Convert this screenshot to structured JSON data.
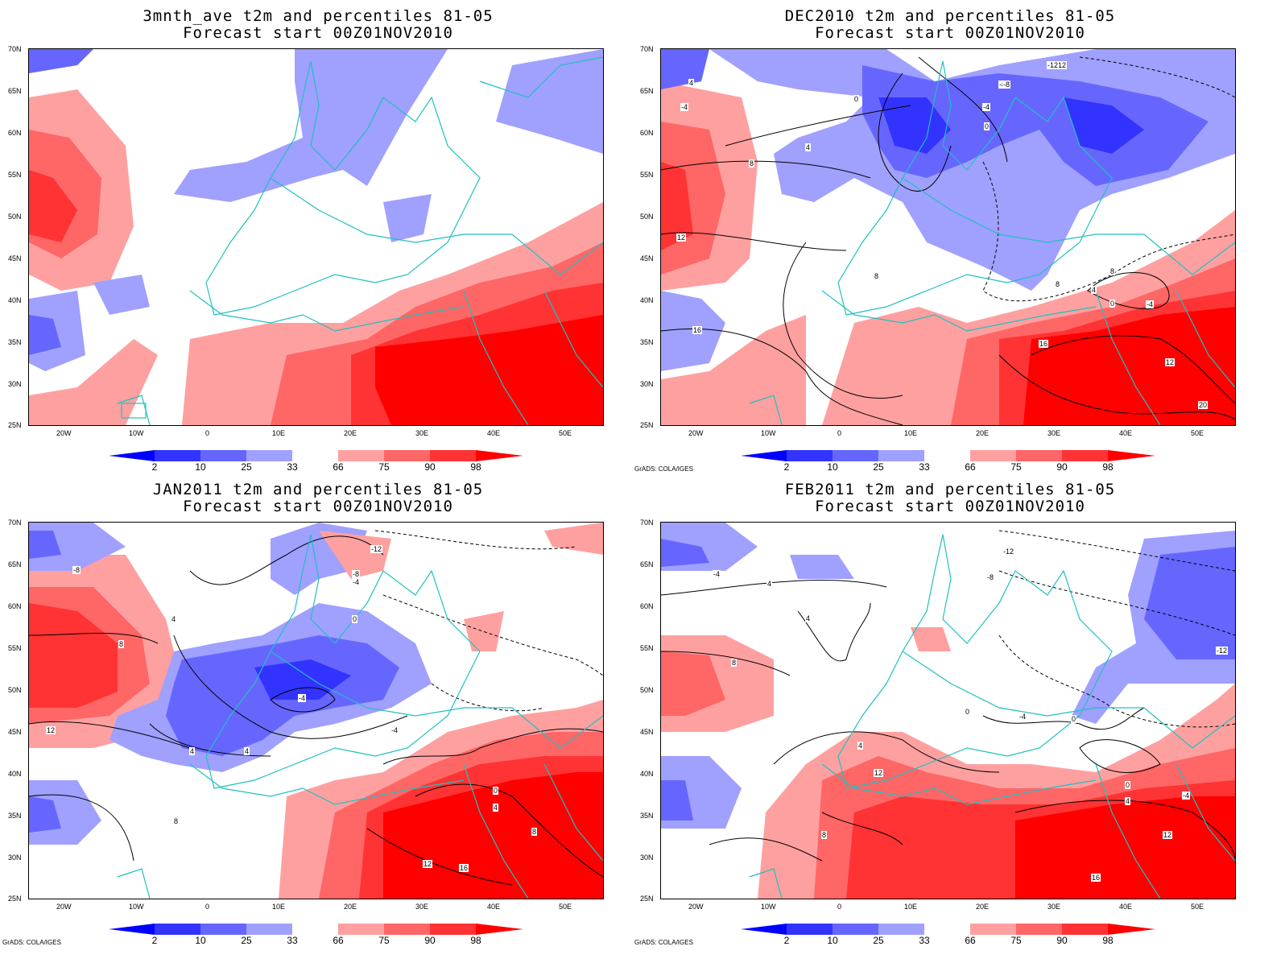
{
  "panels": [
    {
      "title1": "3mnth_ave t2m and percentiles 81-05",
      "title2": "Forecast start 00Z01NOV2010",
      "credit": ""
    },
    {
      "title1": "DEC2010 t2m and percentiles 81-05",
      "title2": "Forecast start 00Z01NOV2010",
      "credit": "GrADS: COLA/IGES"
    },
    {
      "title1": "JAN2011 t2m and percentiles 81-05",
      "title2": "Forecast start 00Z01NOV2010",
      "credit": "GrADS: COLA/IGES"
    },
    {
      "title1": "FEB2011 t2m and percentiles 81-05",
      "title2": "Forecast start 00Z01NOV2010",
      "credit": "GrADS: COLA/IGES"
    }
  ],
  "lat_labels": [
    "70N",
    "65N",
    "60N",
    "55N",
    "50N",
    "45N",
    "40N",
    "35N",
    "30N",
    "25N"
  ],
  "lon_labels": [
    "20W",
    "10W",
    "0",
    "10E",
    "20E",
    "30E",
    "40E",
    "50E"
  ],
  "colorbar": {
    "levels": [
      "2",
      "10",
      "25",
      "33",
      "66",
      "75",
      "90",
      "98"
    ],
    "colors": [
      "#0000ff",
      "#3333ff",
      "#6666ff",
      "#a0a0ff",
      "#ffffff",
      "#ffa0a0",
      "#ff6666",
      "#ff3333",
      "#ff0000"
    ]
  },
  "contour_labels": {
    "dec": [
      "4",
      "-4",
      "0",
      "4",
      "8",
      "-12",
      "-8",
      "-4",
      "0",
      "4",
      "8",
      "12",
      "16",
      "-12",
      "-8",
      "8",
      "4",
      "0",
      "-4",
      "8",
      "12",
      "16",
      "20"
    ],
    "jan": [
      "-8",
      "4",
      "4",
      "8",
      "12",
      "-4",
      "-12",
      "-8",
      "-4",
      "0",
      "4",
      "8",
      "12",
      "16",
      "0",
      "4",
      "8",
      "-4"
    ],
    "feb": [
      "-4",
      "4",
      "8",
      "4",
      "0",
      "-4",
      "0",
      "-12",
      "-8",
      "4",
      "8",
      "12",
      "16",
      "12",
      "0",
      "4",
      "-4",
      "-12"
    ]
  }
}
